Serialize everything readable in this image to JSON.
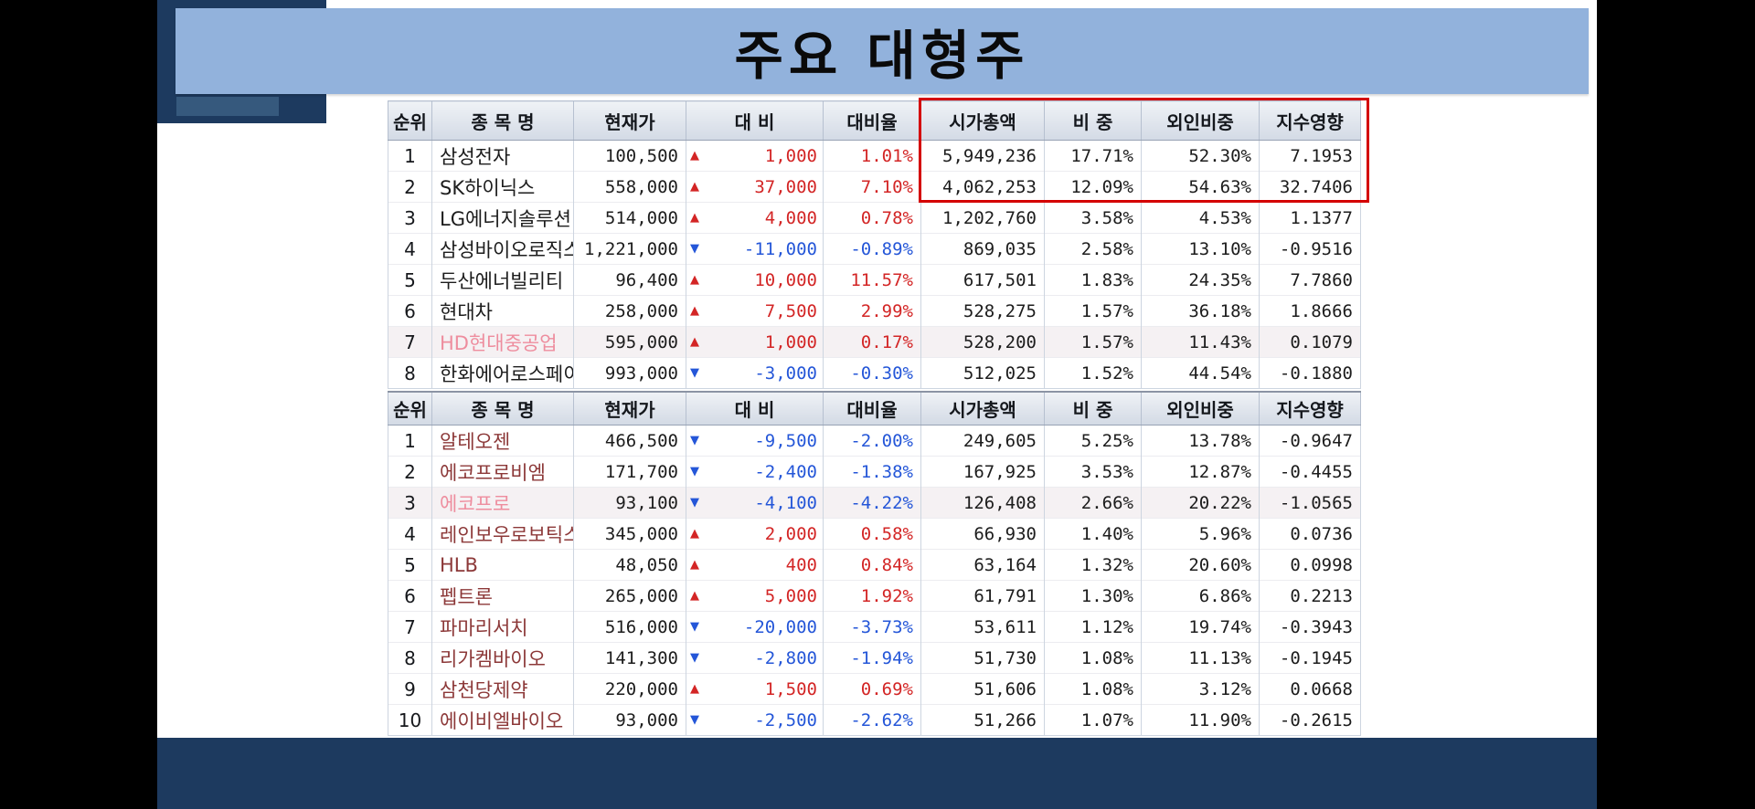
{
  "title": "주요 대형주",
  "colors": {
    "up": "#d32525",
    "down": "#2456d8",
    "maroon": "#8c3838",
    "pink": "#ee8d9e",
    "banner": "#92b2dc",
    "navy": "#1d3a5f",
    "strip": "#36597d",
    "highlight": "#d40000"
  },
  "columns": [
    "순위",
    "종 목 명",
    "현재가",
    "대 비",
    "대비율",
    "시가총액",
    "비 중",
    "외인비중",
    "지수영향"
  ],
  "table1": {
    "rows": [
      {
        "rank": "1",
        "name": "삼성전자",
        "name_style": "default",
        "price": "100,500",
        "trend": "up",
        "change": "1,000",
        "change_pct": "1.01%",
        "mcap": "5,949,236",
        "weight": "17.71%",
        "foreign": "52.30%",
        "impact": "7.1953",
        "tint": false
      },
      {
        "rank": "2",
        "name": "SK하이닉스",
        "name_style": "default",
        "price": "558,000",
        "trend": "up",
        "change": "37,000",
        "change_pct": "7.10%",
        "mcap": "4,062,253",
        "weight": "12.09%",
        "foreign": "54.63%",
        "impact": "32.7406",
        "tint": false
      },
      {
        "rank": "3",
        "name": "LG에너지솔루션",
        "name_style": "default",
        "price": "514,000",
        "trend": "up",
        "change": "4,000",
        "change_pct": "0.78%",
        "mcap": "1,202,760",
        "weight": "3.58%",
        "foreign": "4.53%",
        "impact": "1.1377",
        "tint": false
      },
      {
        "rank": "4",
        "name": "삼성바이오로직스",
        "name_style": "default",
        "price": "1,221,000",
        "trend": "down",
        "change": "-11,000",
        "change_pct": "-0.89%",
        "mcap": "869,035",
        "weight": "2.58%",
        "foreign": "13.10%",
        "impact": "-0.9516",
        "tint": false
      },
      {
        "rank": "5",
        "name": "두산에너빌리티",
        "name_style": "default",
        "price": "96,400",
        "trend": "up",
        "change": "10,000",
        "change_pct": "11.57%",
        "mcap": "617,501",
        "weight": "1.83%",
        "foreign": "24.35%",
        "impact": "7.7860",
        "tint": false
      },
      {
        "rank": "6",
        "name": "현대차",
        "name_style": "default",
        "price": "258,000",
        "trend": "up",
        "change": "7,500",
        "change_pct": "2.99%",
        "mcap": "528,275",
        "weight": "1.57%",
        "foreign": "36.18%",
        "impact": "1.8666",
        "tint": false
      },
      {
        "rank": "7",
        "name": "HD현대중공업",
        "name_style": "pink",
        "price": "595,000",
        "trend": "up",
        "change": "1,000",
        "change_pct": "0.17%",
        "mcap": "528,200",
        "weight": "1.57%",
        "foreign": "11.43%",
        "impact": "0.1079",
        "tint": true
      },
      {
        "rank": "8",
        "name": "한화에어로스페이스",
        "name_style": "default",
        "price": "993,000",
        "trend": "down",
        "change": "-3,000",
        "change_pct": "-0.30%",
        "mcap": "512,025",
        "weight": "1.52%",
        "foreign": "44.54%",
        "impact": "-0.1880",
        "tint": false
      }
    ]
  },
  "table2": {
    "rows": [
      {
        "rank": "1",
        "name": "알테오젠",
        "name_style": "maroon",
        "price": "466,500",
        "trend": "down",
        "change": "-9,500",
        "change_pct": "-2.00%",
        "mcap": "249,605",
        "weight": "5.25%",
        "foreign": "13.78%",
        "impact": "-0.9647",
        "tint": false
      },
      {
        "rank": "2",
        "name": "에코프로비엠",
        "name_style": "maroon",
        "price": "171,700",
        "trend": "down",
        "change": "-2,400",
        "change_pct": "-1.38%",
        "mcap": "167,925",
        "weight": "3.53%",
        "foreign": "12.87%",
        "impact": "-0.4455",
        "tint": false
      },
      {
        "rank": "3",
        "name": "에코프로",
        "name_style": "pink",
        "price": "93,100",
        "trend": "down",
        "change": "-4,100",
        "change_pct": "-4.22%",
        "mcap": "126,408",
        "weight": "2.66%",
        "foreign": "20.22%",
        "impact": "-1.0565",
        "tint": true
      },
      {
        "rank": "4",
        "name": "레인보우로보틱스",
        "name_style": "maroon",
        "price": "345,000",
        "trend": "up",
        "change": "2,000",
        "change_pct": "0.58%",
        "mcap": "66,930",
        "weight": "1.40%",
        "foreign": "5.96%",
        "impact": "0.0736",
        "tint": false
      },
      {
        "rank": "5",
        "name": "HLB",
        "name_style": "maroon",
        "price": "48,050",
        "trend": "up",
        "change": "400",
        "change_pct": "0.84%",
        "mcap": "63,164",
        "weight": "1.32%",
        "foreign": "20.60%",
        "impact": "0.0998",
        "tint": false
      },
      {
        "rank": "6",
        "name": "펩트론",
        "name_style": "maroon",
        "price": "265,000",
        "trend": "up",
        "change": "5,000",
        "change_pct": "1.92%",
        "mcap": "61,791",
        "weight": "1.30%",
        "foreign": "6.86%",
        "impact": "0.2213",
        "tint": false
      },
      {
        "rank": "7",
        "name": "파마리서치",
        "name_style": "maroon",
        "price": "516,000",
        "trend": "down",
        "change": "-20,000",
        "change_pct": "-3.73%",
        "mcap": "53,611",
        "weight": "1.12%",
        "foreign": "19.74%",
        "impact": "-0.3943",
        "tint": false
      },
      {
        "rank": "8",
        "name": "리가켐바이오",
        "name_style": "maroon",
        "price": "141,300",
        "trend": "down",
        "change": "-2,800",
        "change_pct": "-1.94%",
        "mcap": "51,730",
        "weight": "1.08%",
        "foreign": "11.13%",
        "impact": "-0.1945",
        "tint": false
      },
      {
        "rank": "9",
        "name": "삼천당제약",
        "name_style": "maroon",
        "price": "220,000",
        "trend": "up",
        "change": "1,500",
        "change_pct": "0.69%",
        "mcap": "51,606",
        "weight": "1.08%",
        "foreign": "3.12%",
        "impact": "0.0668",
        "tint": false
      },
      {
        "rank": "10",
        "name": "에이비엘바이오",
        "name_style": "maroon",
        "price": "93,000",
        "trend": "down",
        "change": "-2,500",
        "change_pct": "-2.62%",
        "mcap": "51,266",
        "weight": "1.07%",
        "foreign": "11.90%",
        "impact": "-0.2615",
        "tint": false
      }
    ]
  },
  "icons": {
    "up_arrow": "▲",
    "down_arrow": "▼"
  }
}
